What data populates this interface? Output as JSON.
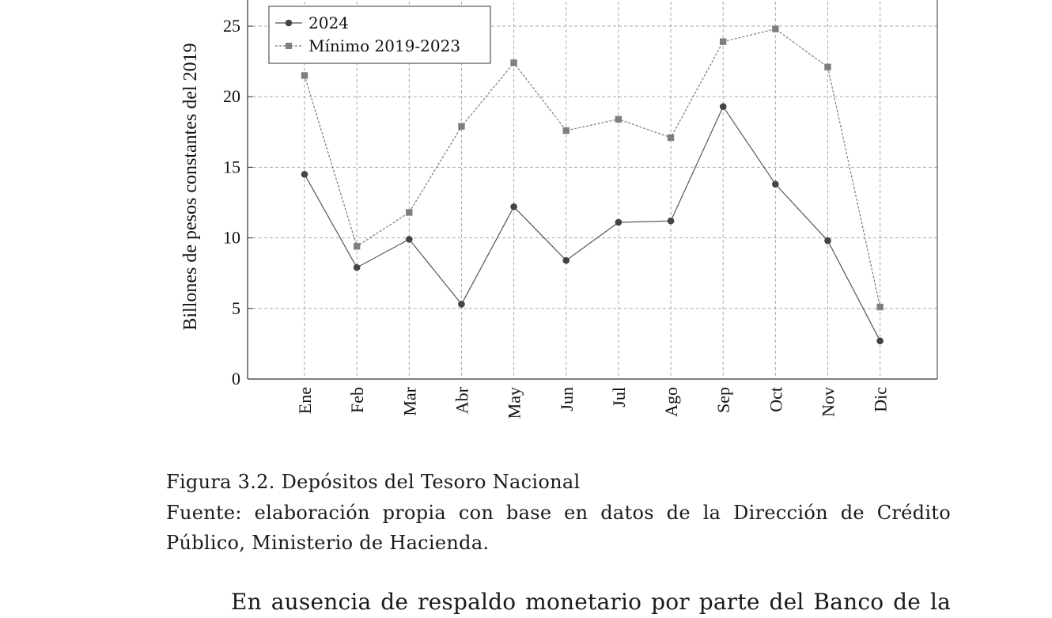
{
  "chart_data": {
    "type": "line",
    "categories": [
      "Ene",
      "Feb",
      "Mar",
      "Abr",
      "May",
      "Jun",
      "Jul",
      "Ago",
      "Sep",
      "Oct",
      "Nov",
      "Dic"
    ],
    "series": [
      {
        "name": "2024",
        "values": [
          14.5,
          7.9,
          9.9,
          5.3,
          12.2,
          8.4,
          11.1,
          11.2,
          19.3,
          13.8,
          9.8,
          2.7
        ],
        "marker": "circle",
        "line": "solid",
        "color": "#555555"
      },
      {
        "name": "Mínimo 2019-2023",
        "values": [
          21.5,
          9.4,
          11.8,
          17.9,
          22.4,
          17.6,
          18.4,
          17.1,
          23.9,
          24.8,
          22.1,
          5.1
        ],
        "marker": "square",
        "line": "dashed",
        "color": "#7a7a7a"
      }
    ],
    "ylabel": "Billones de pesos constantes del 2019",
    "yticks": [
      0,
      5,
      10,
      15,
      20,
      25
    ],
    "ylim": [
      0,
      27
    ],
    "grid": true,
    "legend": "top-left"
  },
  "caption": {
    "title": "Figura 3.2. Depósitos del Tesoro Nacional",
    "source": "Fuente: elaboración propia con base en datos de la Dirección de Crédito Público, Ministerio de Hacienda."
  },
  "body_text": "En ausencia de respaldo monetario por parte del Banco de la"
}
